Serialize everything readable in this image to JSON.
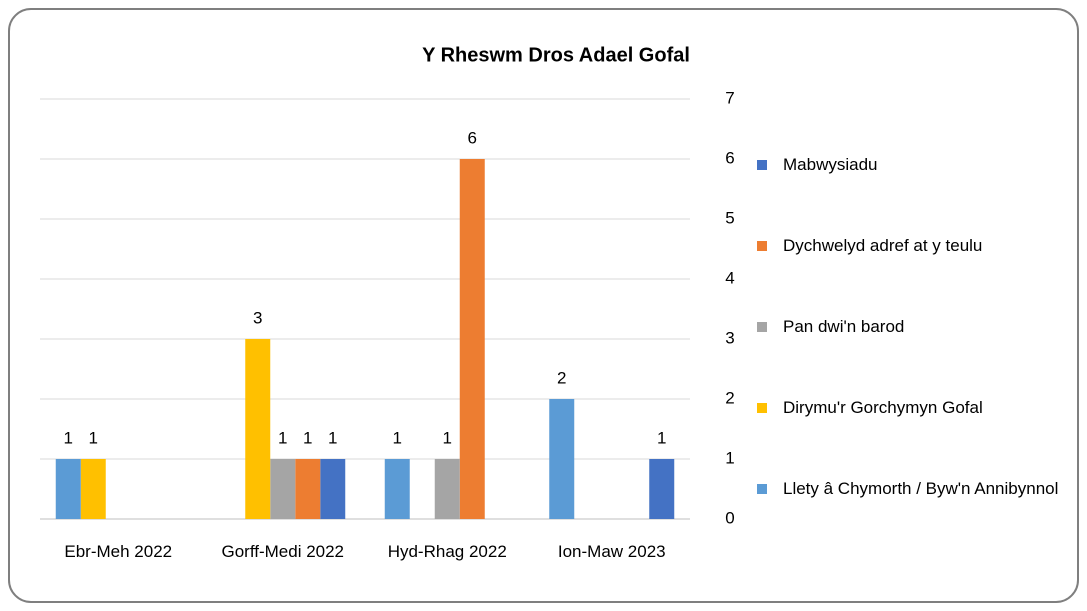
{
  "chart_data": {
    "type": "bar",
    "title": "Y Rheswm Dros Adael Gofal",
    "categories": [
      "Ebr-Meh 2022",
      "Gorff-Medi 2022",
      "Hyd-Rhag 2022",
      "Ion-Maw 2023"
    ],
    "series": [
      {
        "name": "Mabwysiadu",
        "color": "#4472c4",
        "values": [
          null,
          1,
          null,
          1
        ]
      },
      {
        "name": "Dychwelyd adref at y teulu",
        "color": "#ed7d31",
        "values": [
          null,
          1,
          6,
          null
        ]
      },
      {
        "name": "Pan dwi'n barod",
        "color": "#a5a5a5",
        "values": [
          null,
          1,
          1,
          null
        ]
      },
      {
        "name": "Dirymu'r Gorchymyn Gofal",
        "color": "#ffc000",
        "values": [
          1,
          3,
          null,
          null
        ]
      },
      {
        "name": "Llety â Chymorth / Byw'n Annibynnol",
        "color": "#5b9bd5",
        "values": [
          1,
          null,
          1,
          2
        ]
      }
    ],
    "ylim": [
      0,
      7
    ],
    "yticks": [
      0,
      1,
      2,
      3,
      4,
      5,
      6,
      7
    ],
    "grid": true,
    "legend": "right",
    "y_axis_side": "right"
  }
}
